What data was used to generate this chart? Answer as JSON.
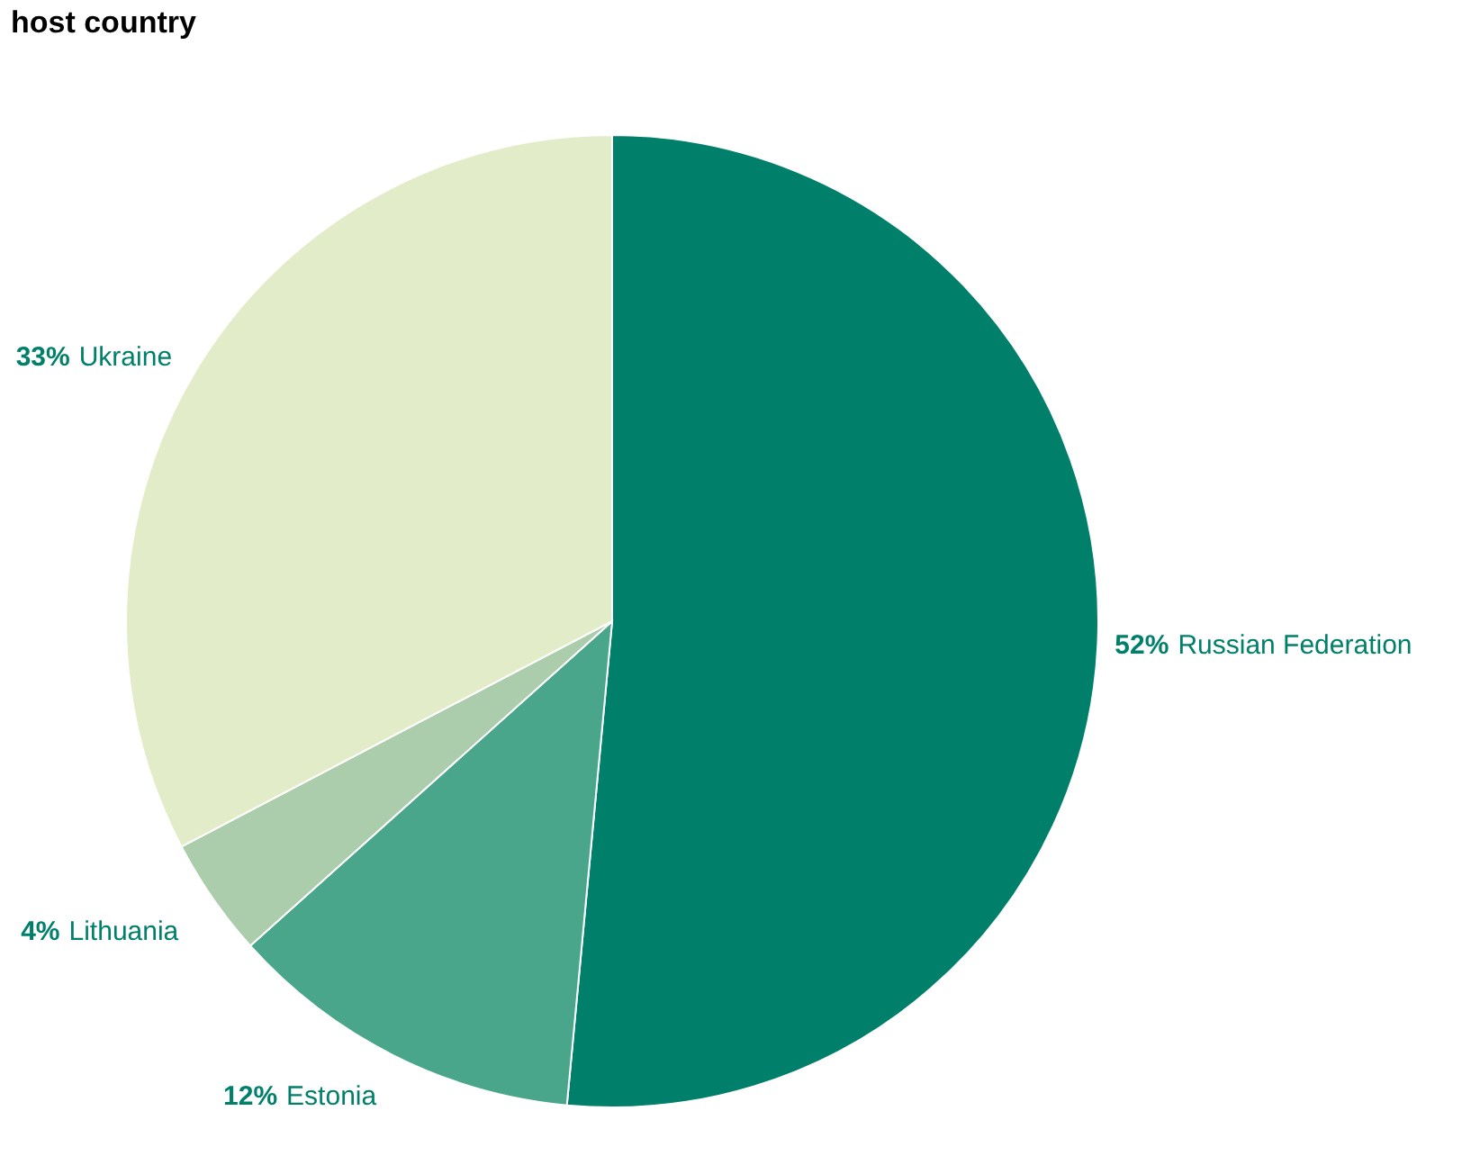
{
  "chart_data": {
    "type": "pie",
    "title": "host country",
    "categories": [
      "Russian Federation",
      "Estonia",
      "Lithuania",
      "Ukraine"
    ],
    "values": [
      52,
      12,
      4,
      33
    ],
    "colors": [
      "#007f6a",
      "#4aa68a",
      "#abcdab",
      "#e3ecc8"
    ],
    "value_labels": [
      "52%",
      "12%",
      "4%",
      "33%"
    ]
  }
}
